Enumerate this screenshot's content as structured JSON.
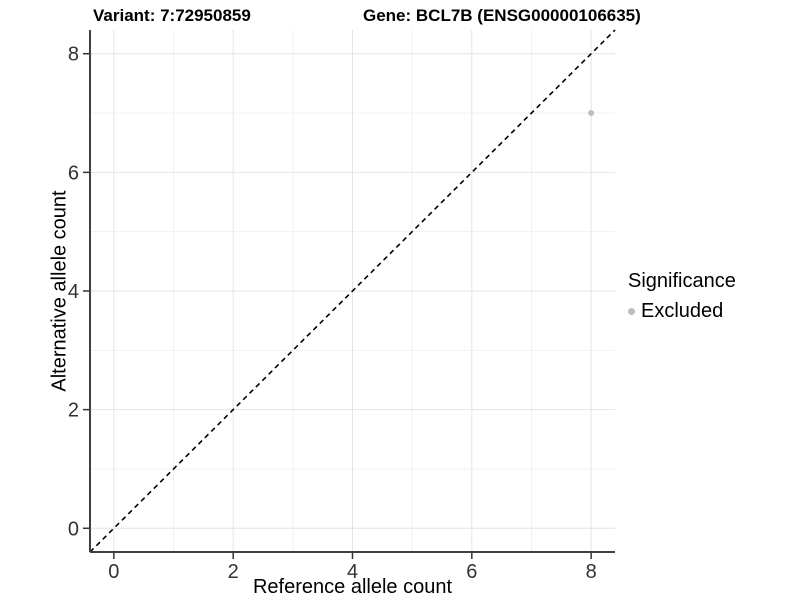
{
  "header": {
    "variant_title": "Variant: 7:72950859",
    "gene_title": "Gene: BCL7B (ENSG00000106635)"
  },
  "chart_data": {
    "type": "scatter",
    "xlabel": "Reference allele count",
    "ylabel": "Alternative allele count",
    "xlim": [
      -0.4,
      8.4
    ],
    "ylim": [
      -0.4,
      8.4
    ],
    "xticks": [
      0,
      2,
      4,
      6,
      8
    ],
    "yticks": [
      0,
      2,
      4,
      6,
      8
    ],
    "minor_xticks": [
      1,
      3,
      5,
      7
    ],
    "minor_yticks": [
      1,
      3,
      5,
      7
    ],
    "grid": "on",
    "identity_line": {
      "style": "dashed",
      "color": "#000000",
      "from": -0.4,
      "to": 8.4
    },
    "series": [
      {
        "name": "Excluded",
        "color": "#bebebe",
        "points": [
          {
            "x": 8,
            "y": 7
          }
        ]
      }
    ],
    "legend": {
      "title": "Significance",
      "position": "right",
      "entries": [
        {
          "label": "Excluded",
          "color": "#bebebe"
        }
      ]
    }
  },
  "colors": {
    "grid_major": "#e4e4e4",
    "grid_minor": "#f1f1f1",
    "axis_line": "#404040",
    "tick_mark": "#333333",
    "tick_text": "#333333",
    "point": "#bebebe"
  }
}
